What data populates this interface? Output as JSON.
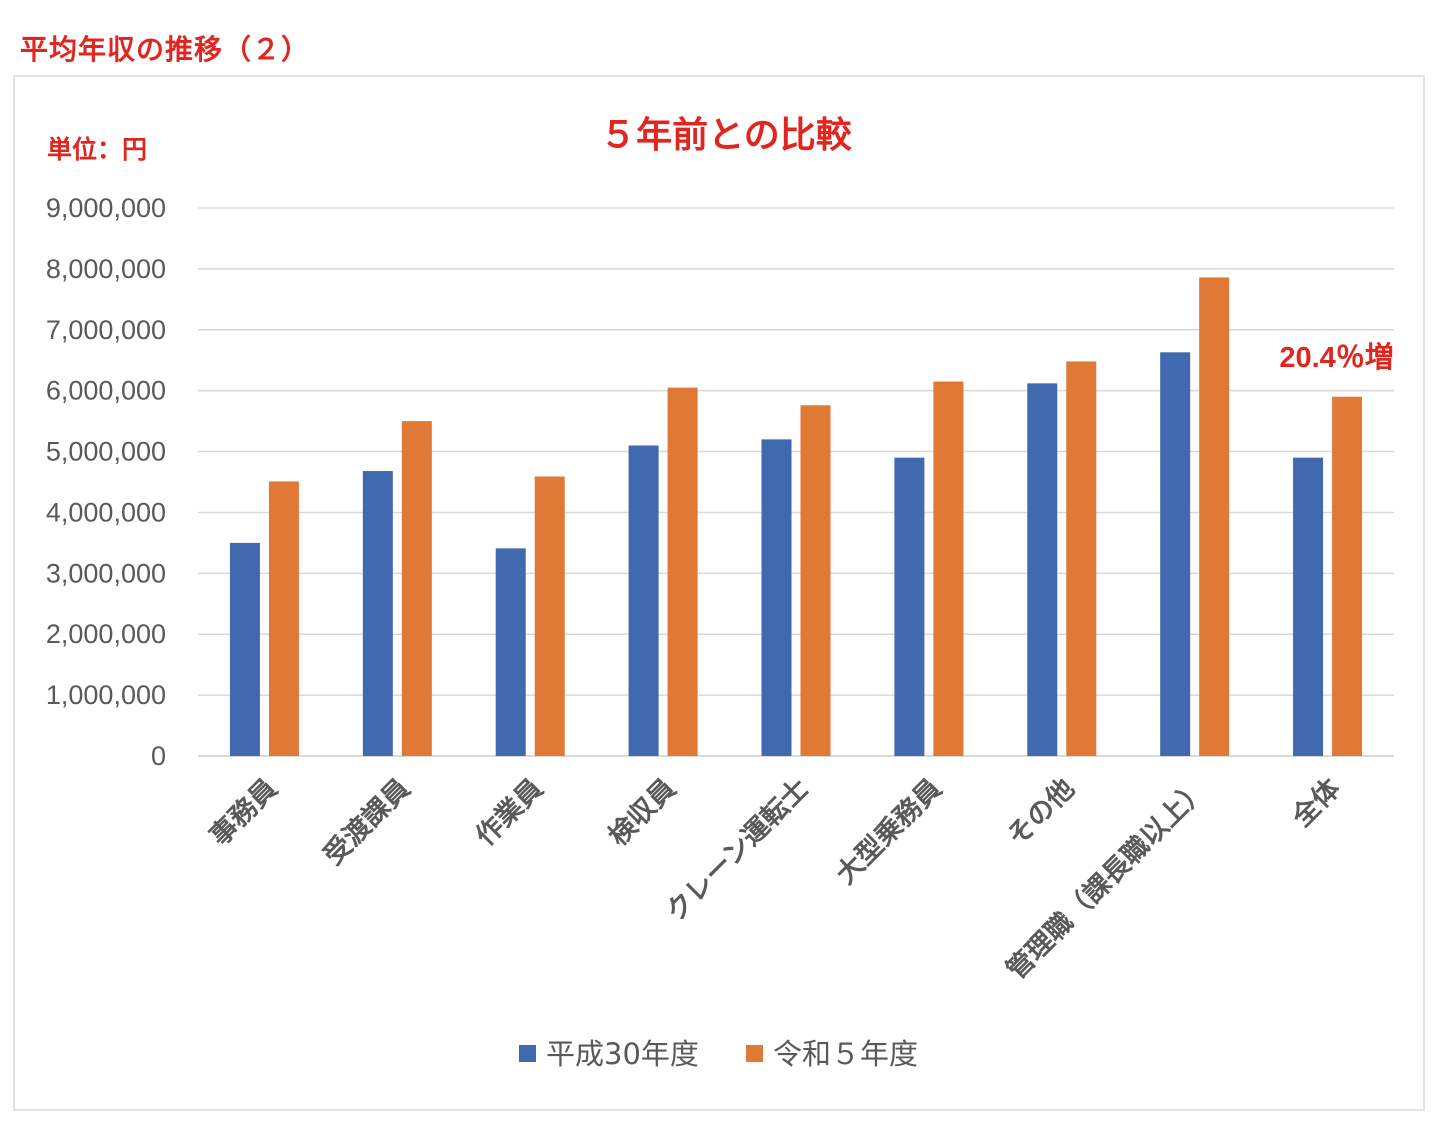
{
  "page_heading": "平均年収の推移（２）",
  "chart_data": {
    "type": "bar",
    "title": "５年前との比較",
    "unit_label": "単位：円",
    "categories": [
      "事務員",
      "受渡課員",
      "作業員",
      "検収員",
      "クレーン運転士",
      "大型乗務員",
      "その他",
      "管理職（課長職以上）",
      "全体"
    ],
    "series": [
      {
        "name": "平成30年度",
        "color": "#4169b0",
        "values": [
          3500000,
          4680000,
          3410000,
          5100000,
          5200000,
          4900000,
          6120000,
          6630000,
          4900000
        ]
      },
      {
        "name": "令和５年度",
        "color": "#e07935",
        "values": [
          4510000,
          5500000,
          4590000,
          6050000,
          5760000,
          6150000,
          6480000,
          7860000,
          5900000
        ]
      }
    ],
    "ylim": [
      0,
      9000000
    ],
    "y_ticks": [
      "0",
      "1,000,000",
      "2,000,000",
      "3,000,000",
      "4,000,000",
      "5,000,000",
      "6,000,000",
      "7,000,000",
      "8,000,000",
      "9,000,000"
    ],
    "annotation": {
      "text": "20.4％増",
      "category": "全体",
      "color": "#e0261f"
    },
    "grid": true,
    "legend_position": "bottom"
  }
}
